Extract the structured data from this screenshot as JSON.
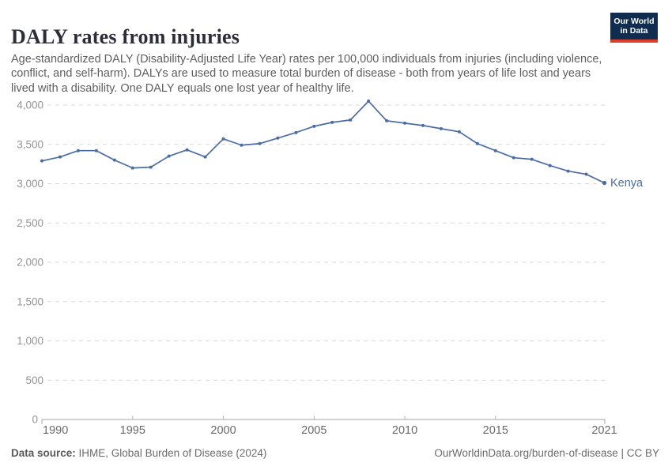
{
  "header": {
    "title": "DALY rates from injuries",
    "subtitle": "Age-standardized DALY (Disability-Adjusted Life Year) rates per 100,000 individuals from injuries (including violence, conflict, and self-harm). DALYs are used to measure total burden of disease - both from years of life lost and years lived with a disability. One DALY equals one lost year of healthy life.",
    "logo": {
      "line1": "Our World",
      "line2": "in Data"
    }
  },
  "chart_data": {
    "type": "line",
    "title": "DALY rates from injuries",
    "x": [
      1990,
      1991,
      1992,
      1993,
      1994,
      1995,
      1996,
      1997,
      1998,
      1999,
      2000,
      2001,
      2002,
      2003,
      2004,
      2005,
      2006,
      2007,
      2008,
      2009,
      2010,
      2011,
      2012,
      2013,
      2014,
      2015,
      2016,
      2017,
      2018,
      2019,
      2020,
      2021
    ],
    "series": [
      {
        "name": "Kenya",
        "color": "#4C6CA6",
        "values": [
          3290,
          3340,
          3420,
          3420,
          3300,
          3200,
          3210,
          3350,
          3430,
          3340,
          3570,
          3490,
          3510,
          3580,
          3650,
          3730,
          3780,
          3810,
          4050,
          3800,
          3770,
          3740,
          3700,
          3660,
          3510,
          3420,
          3330,
          3310,
          3230,
          3160,
          3120,
          3010
        ]
      }
    ],
    "xlabel": "",
    "ylabel": "",
    "ylim": [
      0,
      4000
    ],
    "yticks": [
      0,
      500,
      1000,
      1500,
      2000,
      2500,
      3000,
      3500,
      4000
    ],
    "xticks": [
      1990,
      1995,
      2000,
      2005,
      2010,
      2015,
      2021
    ],
    "grid": "horizontal-dashed",
    "legend": "end-of-line-label"
  },
  "footer": {
    "source_label": "Data source:",
    "source_text": "IHME, Global Burden of Disease (2024)",
    "rights": "OurWorldinData.org/burden-of-disease | CC BY"
  },
  "colors": {
    "line": "#4C6CA6",
    "grid": "#d9d9d9",
    "axis": "#a3a3a3",
    "tick_mark": "#b5b5b5",
    "y_label": "#949494",
    "x_label": "#6a6a6a",
    "title": "#2d2d3a",
    "subtitle": "#5e5e5e",
    "footer": "#6b6b6b",
    "logo_bg": "#102d4f",
    "logo_stripe": "#dd3d2d",
    "logo_text": "#ffffff"
  }
}
